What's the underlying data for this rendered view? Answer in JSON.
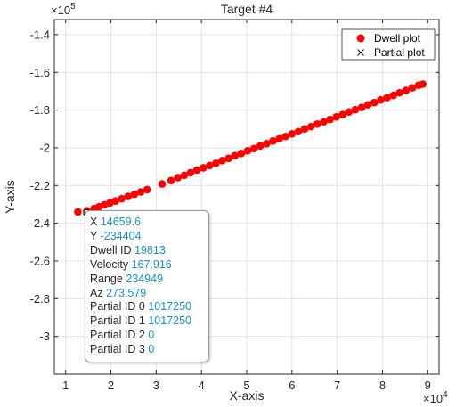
{
  "colors": {
    "dwell": "#ff0000",
    "partial": "#000000",
    "grid": "#e3e3e3",
    "axis": "#262626",
    "datatip_value": "#1a8fc9"
  },
  "chart_data": {
    "type": "scatter",
    "title": "Target #4",
    "xlabel": "X-axis",
    "ylabel": "Y-axis",
    "x_exponent_label": "×10",
    "x_exponent": "4",
    "y_exponent_label": "×10",
    "y_exponent": "5",
    "xlim": [
      0.75,
      9.25
    ],
    "ylim": [
      -3.2,
      -1.32
    ],
    "x_ticks": [
      1,
      2,
      3,
      4,
      5,
      6,
      7,
      8,
      9
    ],
    "x_tick_labels": [
      "1",
      "2",
      "3",
      "4",
      "5",
      "6",
      "7",
      "8",
      "9"
    ],
    "y_ticks": [
      -1.4,
      -1.6,
      -1.8,
      -2,
      -2.2,
      -2.4,
      -2.6,
      -2.8,
      -3
    ],
    "y_tick_labels": [
      "-1.4",
      "-1.6",
      "-1.8",
      "-2",
      "-2.2",
      "-2.4",
      "-2.6",
      "-2.8",
      "-3"
    ],
    "grid": true,
    "legend_position": "top-right",
    "series": [
      {
        "name": "Dwell plot",
        "marker": "filled-circle",
        "color": "#ff0000",
        "x": [
          1.27,
          1.47,
          1.63,
          1.74,
          1.86,
          1.98,
          2.1,
          2.24,
          2.38,
          2.52,
          2.66,
          2.8,
          3.13,
          3.33,
          3.48,
          3.62,
          3.76,
          3.9,
          4.04,
          4.18,
          4.32,
          4.46,
          4.6,
          4.74,
          4.88,
          5.02,
          5.16,
          5.3,
          5.44,
          5.58,
          5.72,
          5.86,
          6.0,
          6.14,
          6.28,
          6.42,
          6.56,
          6.7,
          6.84,
          6.98,
          7.12,
          7.26,
          7.4,
          7.54,
          7.68,
          7.82,
          7.96,
          8.1,
          8.24,
          8.38,
          8.52,
          8.66,
          8.8,
          8.89
        ],
        "y": [
          -2.34,
          -2.334,
          -2.322,
          -2.312,
          -2.302,
          -2.292,
          -2.282,
          -2.27,
          -2.258,
          -2.246,
          -2.234,
          -2.222,
          -2.192,
          -2.174,
          -2.158,
          -2.146,
          -2.132,
          -2.118,
          -2.106,
          -2.094,
          -2.082,
          -2.068,
          -2.056,
          -2.042,
          -2.03,
          -2.016,
          -2.004,
          -1.99,
          -1.978,
          -1.964,
          -1.952,
          -1.94,
          -1.926,
          -1.914,
          -1.9,
          -1.888,
          -1.874,
          -1.862,
          -1.85,
          -1.836,
          -1.824,
          -1.81,
          -1.798,
          -1.786,
          -1.772,
          -1.76,
          -1.746,
          -1.734,
          -1.722,
          -1.708,
          -1.696,
          -1.682,
          -1.668,
          -1.662
        ]
      },
      {
        "name": "Partial plot",
        "marker": "x",
        "color": "#000000",
        "x": [],
        "y": []
      }
    ]
  },
  "datatip": {
    "rows": [
      {
        "label": "X",
        "value": "14659.6"
      },
      {
        "label": "Y",
        "value": "-234404"
      },
      {
        "label": "Dwell ID",
        "value": "19813"
      },
      {
        "label": "Velocity",
        "value": "167.916"
      },
      {
        "label": "Range",
        "value": "234949"
      },
      {
        "label": "Az",
        "value": "273.579"
      },
      {
        "label": "Partial ID 0",
        "value": "1017250"
      },
      {
        "label": "Partial ID 1",
        "value": "1017250"
      },
      {
        "label": "Partial ID 2",
        "value": "0"
      },
      {
        "label": "Partial ID 3",
        "value": "0"
      }
    ],
    "selected_point": {
      "x": 1.46596,
      "y": -2.34404
    }
  }
}
